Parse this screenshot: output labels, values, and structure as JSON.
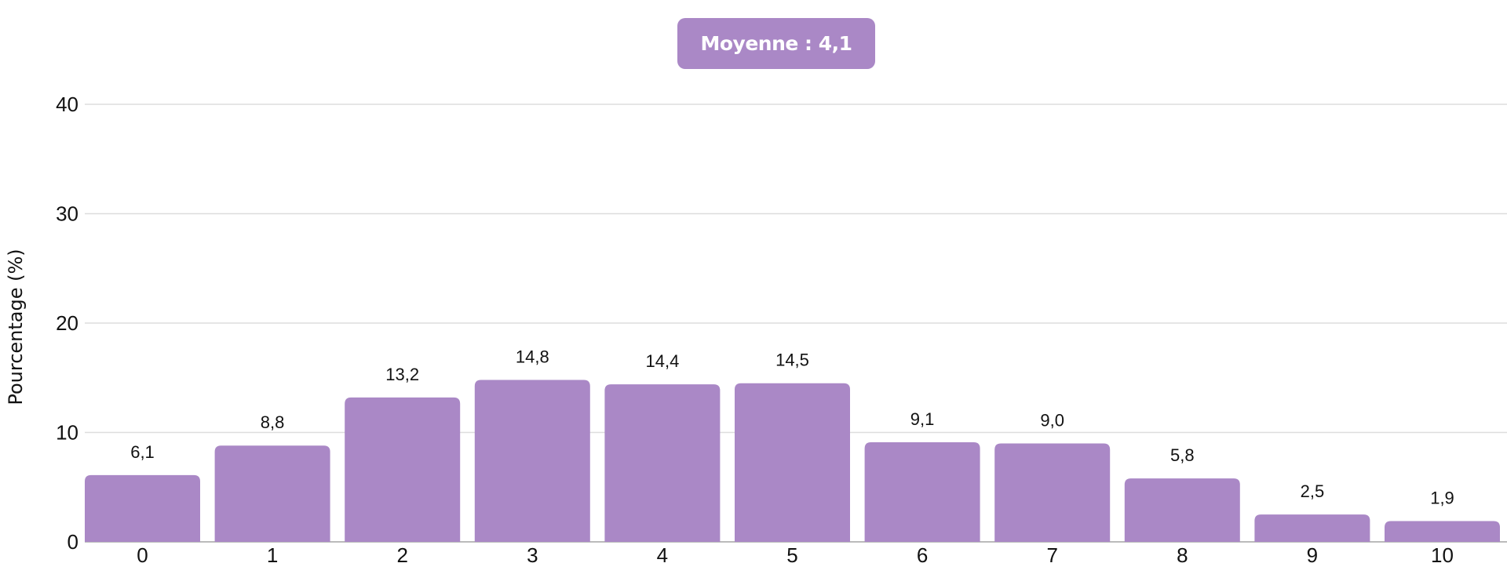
{
  "badge": {
    "text": "Moyenne : 4,1"
  },
  "colors": {
    "bar": "#aa88c6",
    "badge": "#aa88c6",
    "grid": "#dddddd",
    "baseline": "#bbbbbb"
  },
  "chart_data": {
    "type": "bar",
    "title": "",
    "xlabel": "",
    "ylabel": "Pourcentage (%)",
    "categories": [
      "0",
      "1",
      "2",
      "3",
      "4",
      "5",
      "6",
      "7",
      "8",
      "9",
      "10"
    ],
    "values": [
      6.1,
      8.8,
      13.2,
      14.8,
      14.4,
      14.5,
      9.1,
      9.0,
      5.8,
      2.5,
      1.9
    ],
    "value_labels": [
      "6,1",
      "8,8",
      "13,2",
      "14,8",
      "14,4",
      "14,5",
      "9,1",
      "9,0",
      "5,8",
      "2,5",
      "1,9"
    ],
    "yticks": [
      0,
      10,
      20,
      30,
      40
    ],
    "ylim": [
      0,
      40
    ],
    "grid": true,
    "legend": "none"
  }
}
